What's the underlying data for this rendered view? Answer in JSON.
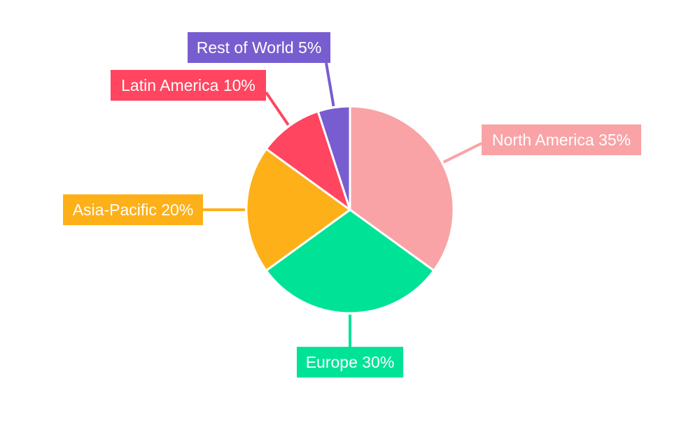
{
  "chart_data": {
    "type": "pie",
    "title": "",
    "start_angle": "top, clockwise",
    "legend": "none",
    "slices": [
      {
        "label": "North America",
        "value": 35,
        "text": "North America 35%",
        "color": "#f9a3a6"
      },
      {
        "label": "Europe",
        "value": 30,
        "text": "Europe 30%",
        "color": "#00e396"
      },
      {
        "label": "Asia-Pacific",
        "value": 20,
        "text": "Asia-Pacific 20%",
        "color": "#feb019"
      },
      {
        "label": "Latin America",
        "value": 10,
        "text": "Latin America 10%",
        "color": "#ff4560"
      },
      {
        "label": "Rest of World",
        "value": 5,
        "text": "Rest of World 5%",
        "color": "#775dd0"
      }
    ]
  }
}
